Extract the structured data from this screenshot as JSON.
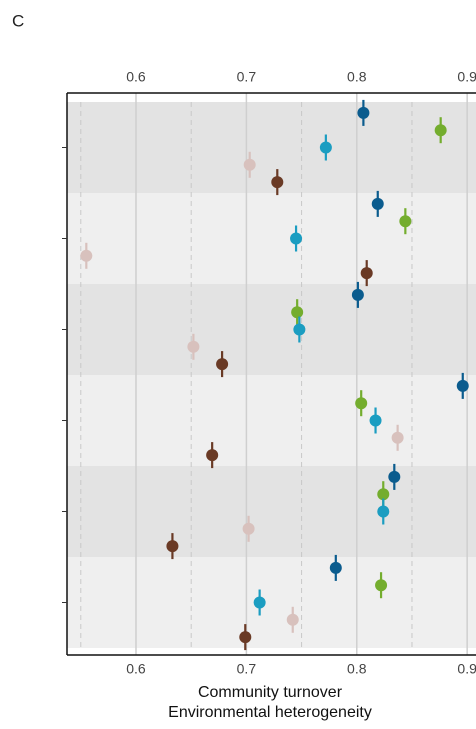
{
  "chart_data": {
    "type": "dot",
    "panel_label": "C",
    "xlabel": [
      "Community turnover",
      "Environmental heterogeneity"
    ],
    "categories": [
      null,
      null,
      null,
      null,
      null,
      null
    ],
    "series": [
      {
        "color": "#0b5c8e",
        "values": [
          0.806,
          0.819,
          0.801,
          0.896,
          0.834,
          0.781
        ]
      },
      {
        "color": "#74ad2e",
        "values": [
          0.876,
          0.844,
          0.746,
          0.804,
          0.824,
          0.822
        ]
      },
      {
        "color": "#1b9dc1",
        "values": [
          0.772,
          0.745,
          0.748,
          0.817,
          0.824,
          0.712
        ]
      },
      {
        "color": "#d8c1bd",
        "values": [
          0.703,
          0.555,
          0.652,
          0.837,
          0.702,
          0.742
        ]
      },
      {
        "color": "#6a3a25",
        "values": [
          0.728,
          0.809,
          0.678,
          0.669,
          0.633,
          0.699
        ]
      }
    ],
    "xlim": [
      0.5375,
      0.908
    ],
    "xticks": [
      0.6,
      0.7,
      0.8,
      0.9
    ],
    "xminor": [
      0.55,
      0.65,
      0.75,
      0.85
    ],
    "grid": true
  }
}
